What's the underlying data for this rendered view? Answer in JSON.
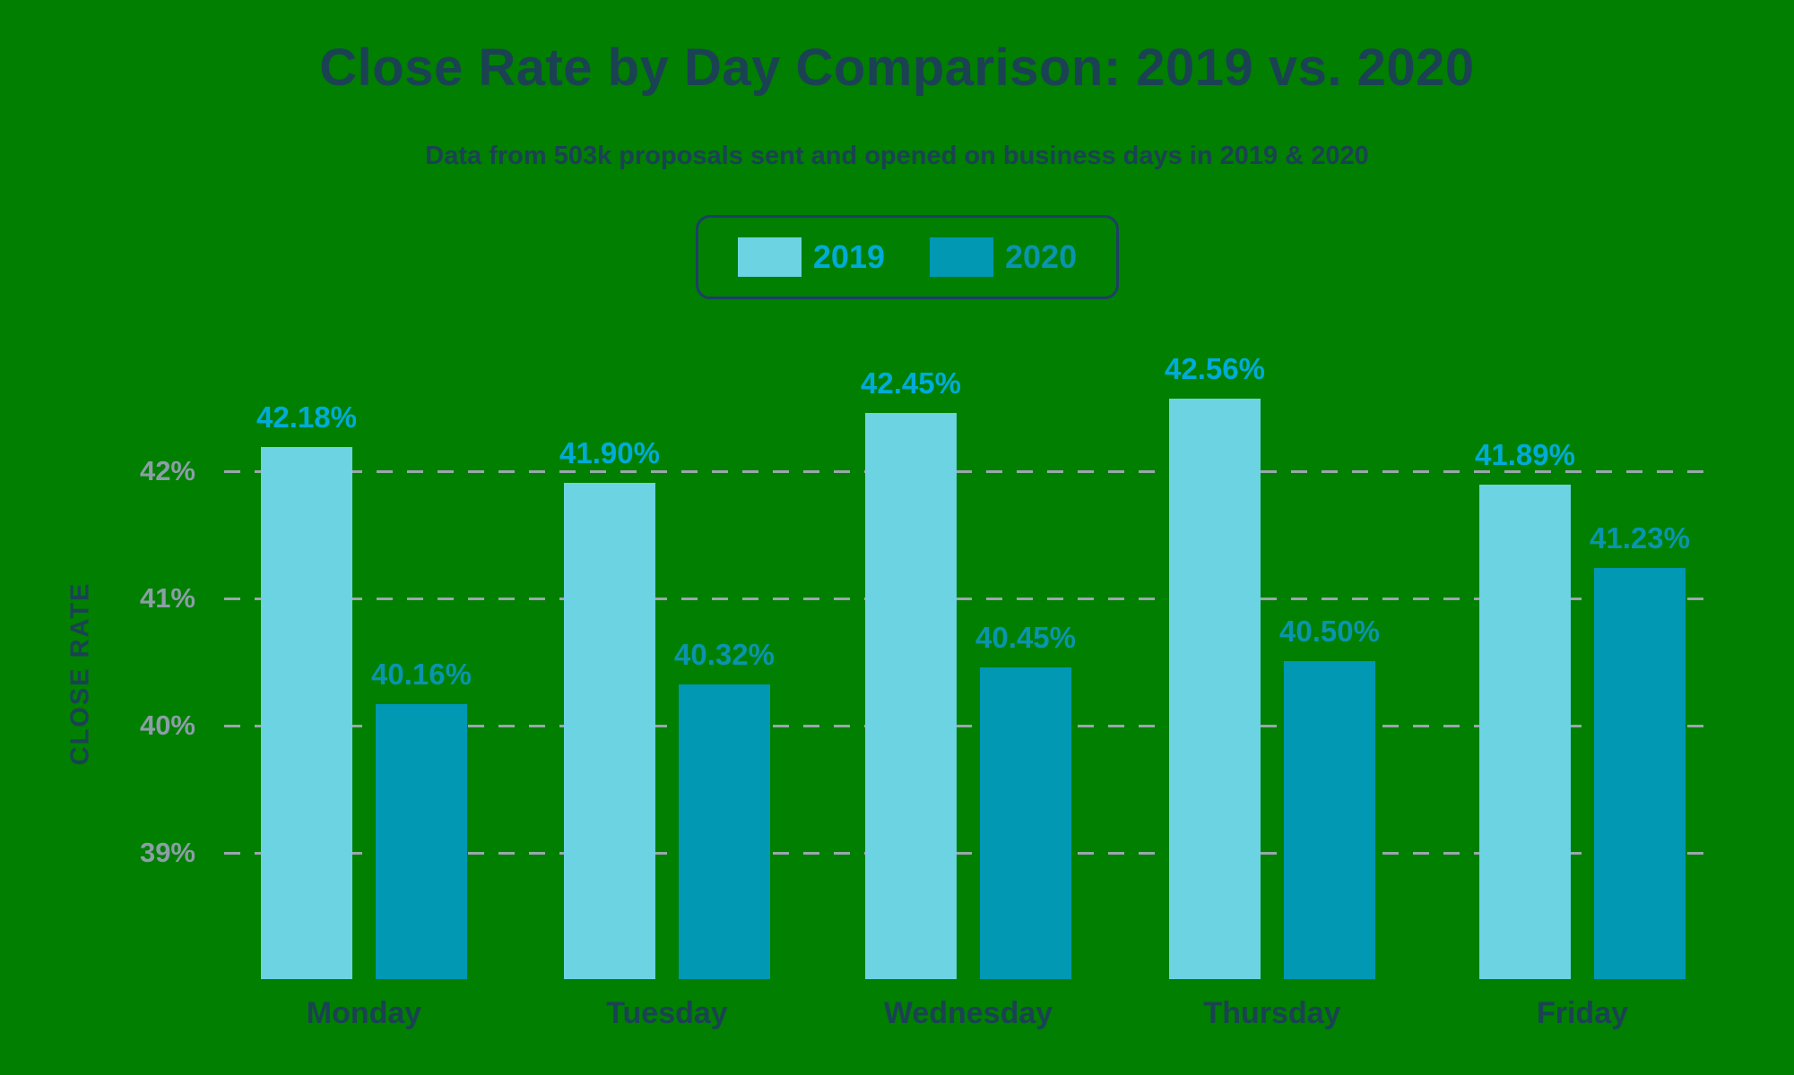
{
  "colors": {
    "background": "#007F00",
    "title_text": "#1B4253",
    "bar_2019": "#6BD3E1",
    "bar_2020": "#0098B3",
    "label_2019": "#00ABD8",
    "label_2020": "#0A94AE",
    "axis_tick": "#8C9EA6",
    "gridline": "#9AA7AD",
    "legend_border": "#1E3F66"
  },
  "header": {
    "title": "Close Rate by Day Comparison: 2019 vs. 2020",
    "subtitle": "Data from 503k proposals sent and opened on business days in 2019 & 2020"
  },
  "legend": {
    "items": [
      {
        "label": "2019",
        "swatch_color": "#6BD3E1",
        "text_color": "#00ABD8"
      },
      {
        "label": "2020",
        "swatch_color": "#0098B3",
        "text_color": "#0A94AE"
      }
    ]
  },
  "chart_data": {
    "type": "bar",
    "title": "Close Rate by Day Comparison: 2019 vs. 2020",
    "subtitle": "Data from 503k proposals sent and opened on business days in 2019 & 2020",
    "categories": [
      "Monday",
      "Tuesday",
      "Wednesday",
      "Thursday",
      "Friday"
    ],
    "series": [
      {
        "name": "2019",
        "values": [
          42.18,
          41.9,
          42.45,
          42.56,
          41.89
        ],
        "labels": [
          "42.18%",
          "41.90%",
          "42.45%",
          "42.56%",
          "41.89%"
        ],
        "color": "#6BD3E1"
      },
      {
        "name": "2020",
        "values": [
          40.16,
          40.32,
          40.45,
          40.5,
          41.23
        ],
        "labels": [
          "40.16%",
          "40.32%",
          "40.45%",
          "40.50%",
          "41.23%"
        ],
        "color": "#0098B3"
      }
    ],
    "xlabel": "",
    "ylabel": "CLOSE RATE",
    "y_ticks": [
      {
        "label": "42%",
        "value": 42
      },
      {
        "label": "41%",
        "value": 41
      },
      {
        "label": "40%",
        "value": 40
      },
      {
        "label": "39%",
        "value": 39
      }
    ],
    "y_baseline": 38,
    "ylim": [
      38,
      43
    ],
    "grid": "horizontal-dashed",
    "legend_position": "top-center"
  }
}
